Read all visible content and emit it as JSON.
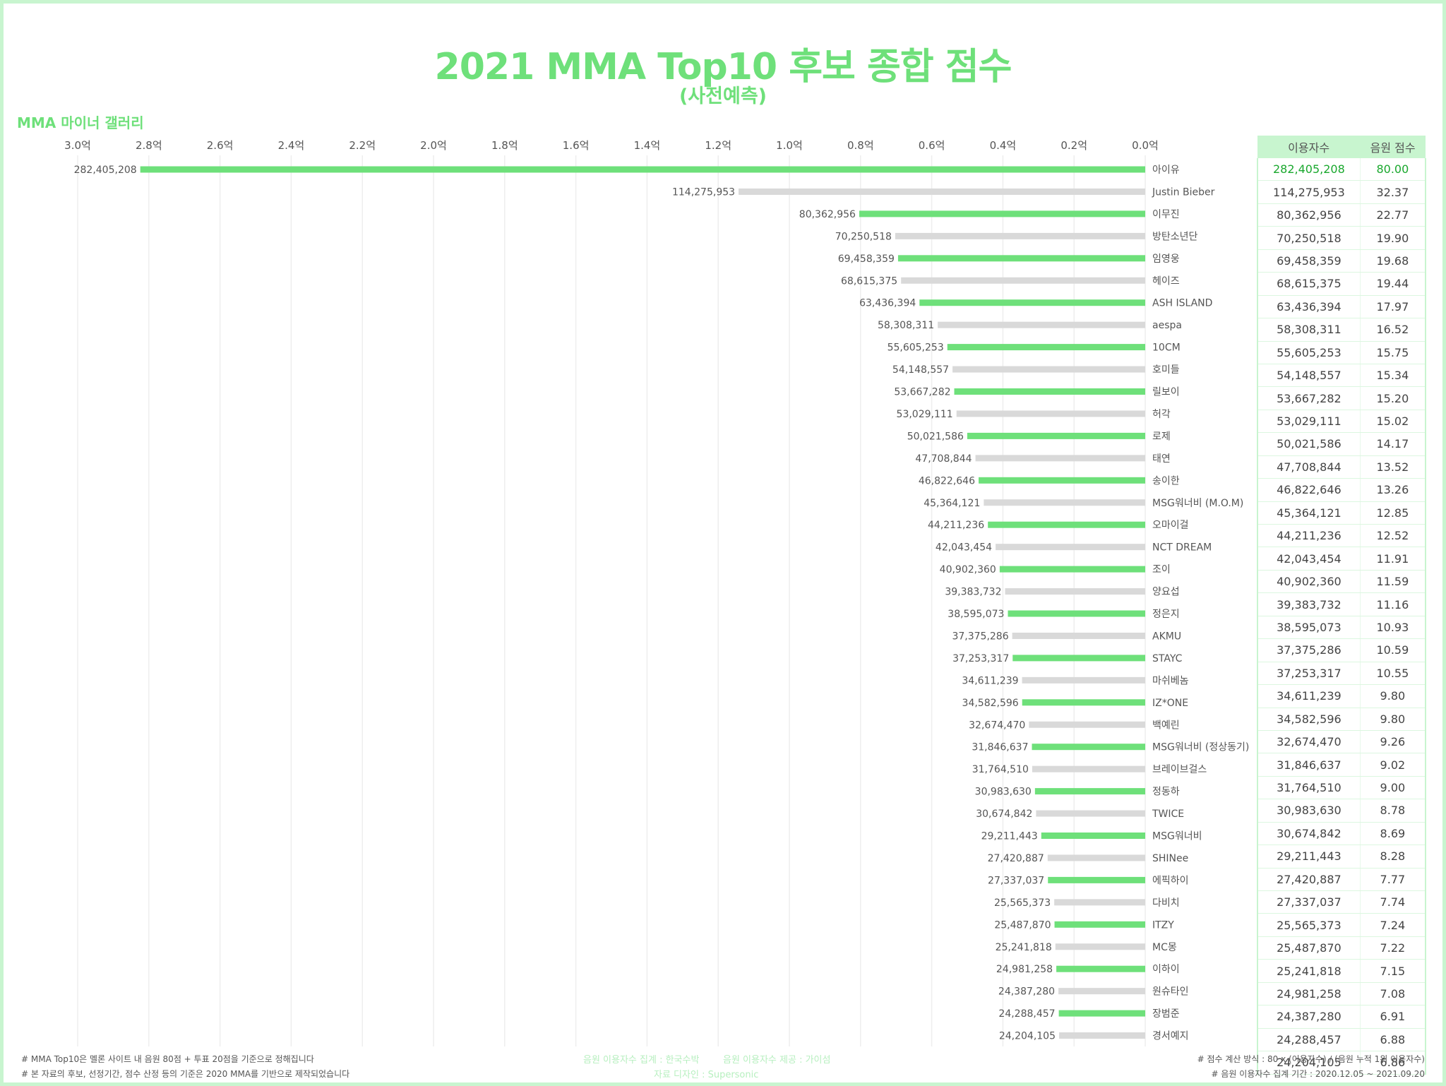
{
  "header": {
    "title": "2021 MMA Top10 후보 종합 점수",
    "subtitle": "(사전예측)",
    "gallery": "MMA 마이너 갤러리"
  },
  "colors": {
    "accent": "#6ee07a",
    "gray_bar": "#d9d9d9",
    "header_bg": "#c8f5cf"
  },
  "table": {
    "col_users": "이용자수",
    "col_score": "음원 점수"
  },
  "chart_data": {
    "type": "bar",
    "orientation": "horizontal",
    "x_direction": "reversed",
    "xlim": [
      0,
      3.0
    ],
    "x_unit": "억",
    "x_ticks": [
      "3.0억",
      "2.8억",
      "2.6억",
      "2.4억",
      "2.2억",
      "2.0억",
      "1.8억",
      "1.6억",
      "1.4억",
      "1.2억",
      "1.0억",
      "0.8억",
      "0.6억",
      "0.4억",
      "0.2억",
      "0.0억"
    ],
    "grid": true,
    "categories": [
      "아이유",
      "Justin Bieber",
      "이무진",
      "방탄소년단",
      "임영웅",
      "헤이즈",
      "ASH ISLAND",
      "aespa",
      "10CM",
      "호미들",
      "릴보이",
      "허각",
      "로제",
      "태연",
      "송이한",
      "MSG워너비 (M.O.M)",
      "오마이걸",
      "NCT DREAM",
      "조이",
      "양요섭",
      "정은지",
      "AKMU",
      "STAYC",
      "마쉬베놈",
      "IZ*ONE",
      "백예린",
      "MSG워너비 (정상동기)",
      "브레이브걸스",
      "정동하",
      "TWICE",
      "MSG워너비",
      "SHINee",
      "에픽하이",
      "다비치",
      "ITZY",
      "MC몽",
      "이하이",
      "원슈타인",
      "장범준",
      "경서예지"
    ],
    "values": [
      282405208,
      114275953,
      80362956,
      70250518,
      69458359,
      68615375,
      63436394,
      58308311,
      55605253,
      54148557,
      53667282,
      53029111,
      50021586,
      47708844,
      46822646,
      45364121,
      44211236,
      42043454,
      40902360,
      39383732,
      38595073,
      37375286,
      37253317,
      34611239,
      34582596,
      32674470,
      31846637,
      31764510,
      30983630,
      30674842,
      29211443,
      27420887,
      27337037,
      25565373,
      25487870,
      25241818,
      24981258,
      24387280,
      24288457,
      24204105
    ],
    "value_labels": [
      "282,405,208",
      "114,275,953",
      "80,362,956",
      "70,250,518",
      "69,458,359",
      "68,615,375",
      "63,436,394",
      "58,308,311",
      "55,605,253",
      "54,148,557",
      "53,667,282",
      "53,029,111",
      "50,021,586",
      "47,708,844",
      "46,822,646",
      "45,364,121",
      "44,211,236",
      "42,043,454",
      "40,902,360",
      "39,383,732",
      "38,595,073",
      "37,375,286",
      "37,253,317",
      "34,611,239",
      "34,582,596",
      "32,674,470",
      "31,846,637",
      "31,764,510",
      "30,983,630",
      "30,674,842",
      "29,211,443",
      "27,420,887",
      "27,337,037",
      "25,565,373",
      "25,487,870",
      "25,241,818",
      "24,981,258",
      "24,387,280",
      "24,288,457",
      "24,204,105"
    ],
    "scores": [
      "80.00",
      "32.37",
      "22.77",
      "19.90",
      "19.68",
      "19.44",
      "17.97",
      "16.52",
      "15.75",
      "15.34",
      "15.20",
      "15.02",
      "14.17",
      "13.52",
      "13.26",
      "12.85",
      "12.52",
      "11.91",
      "11.59",
      "11.16",
      "10.93",
      "10.59",
      "10.55",
      "9.80",
      "9.80",
      "9.26",
      "9.02",
      "9.00",
      "8.78",
      "8.69",
      "8.28",
      "7.77",
      "7.74",
      "7.24",
      "7.22",
      "7.15",
      "7.08",
      "6.91",
      "6.88",
      "6.86"
    ]
  },
  "footer": {
    "left1": "# MMA Top10은 멜론 사이트 내 음원 80점 + 투표 20점을 기준으로 정해집니다",
    "left2": "# 본 자료의 후보, 선정기간, 점수 산정 등의 기준은 2020 MMA를 기반으로 제작되었습니다",
    "center1a": "음원 이용자수 집계 : 한국수박",
    "center1b": "음원 이용자수 제공 : 가이섬",
    "center2": "자료 디자인 : Supersonic",
    "right1": "# 점수 계산 방식 : 80 x (이용자수) / (음원 누적 1위 이용자수)",
    "right2": "# 음원 이용자수 집계 기간 : 2020.12.05 ~ 2021.09.20"
  }
}
